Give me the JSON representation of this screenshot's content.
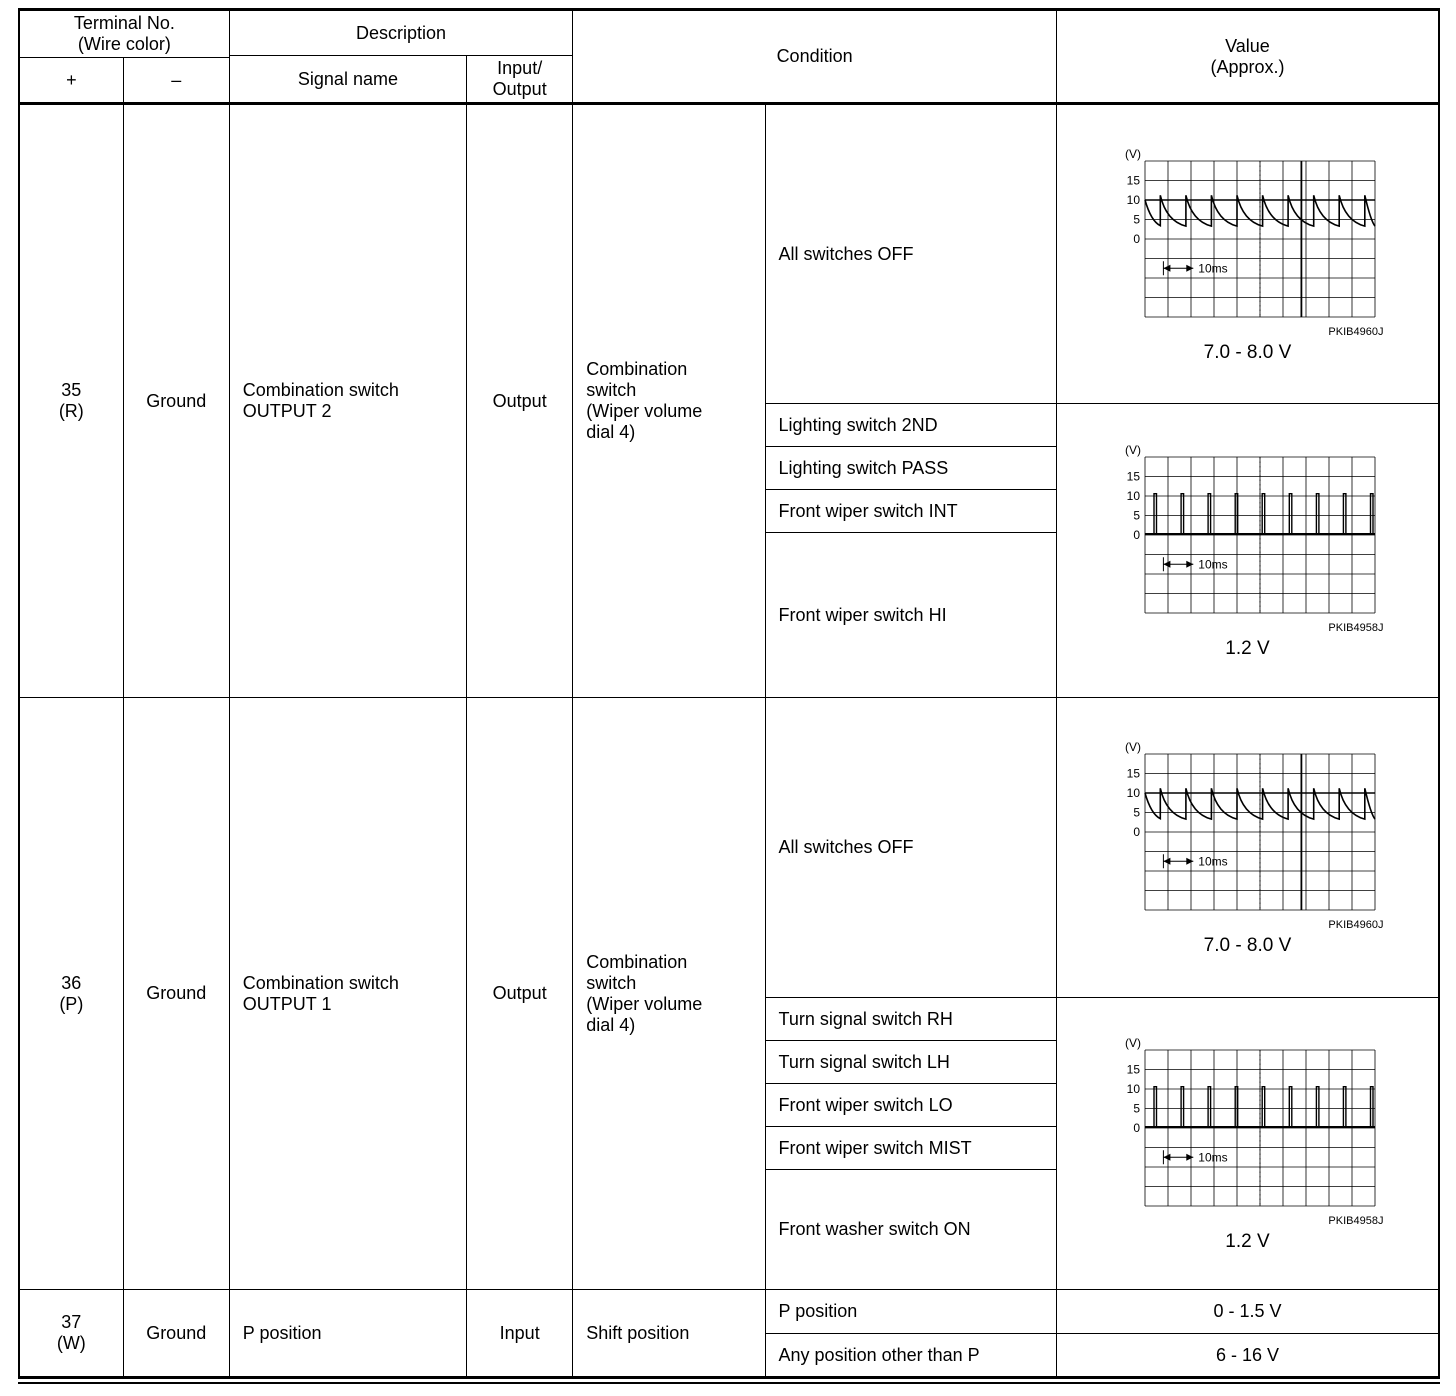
{
  "header": {
    "terminal": "Terminal No.\n(Wire color)",
    "plus": "+",
    "minus": "–",
    "description": "Description",
    "signal_name": "Signal name",
    "input_output": "Input/\nOutput",
    "condition": "Condition",
    "value": "Value\n(Approx.)"
  },
  "scope": {
    "v_label": "(V)",
    "ticks": [
      "15",
      "10",
      "5",
      "0"
    ],
    "time_label": "10ms"
  },
  "rows": [
    {
      "terminal": "35\n(R)",
      "ground": "Ground",
      "signal": "Combination switch\nOUTPUT 2",
      "io": "Output",
      "condition_main": "Combination\nswitch\n(Wiper volume\ndial 4)",
      "groups": [
        {
          "conditions": [
            "All switches OFF"
          ],
          "wave": "sawtooth",
          "code": "PKIB4960J",
          "value": "7.0 - 8.0 V"
        },
        {
          "conditions": [
            "Lighting switch 2ND",
            "Lighting switch PASS",
            "Front wiper switch INT",
            "Front wiper switch HI"
          ],
          "wave": "pulses",
          "code": "PKIB4958J",
          "value": "1.2 V"
        }
      ]
    },
    {
      "terminal": "36\n(P)",
      "ground": "Ground",
      "signal": "Combination switch\nOUTPUT 1",
      "io": "Output",
      "condition_main": "Combination\nswitch\n(Wiper volume\ndial 4)",
      "groups": [
        {
          "conditions": [
            "All switches OFF"
          ],
          "wave": "sawtooth",
          "code": "PKIB4960J",
          "value": "7.0 - 8.0 V"
        },
        {
          "conditions": [
            "Turn signal switch RH",
            "Turn signal switch LH",
            "Front wiper switch LO",
            "Front wiper switch MIST",
            "Front washer switch ON"
          ],
          "wave": "pulses",
          "code": "PKIB4958J",
          "value": "1.2 V"
        }
      ]
    },
    {
      "terminal": "37\n(W)",
      "ground": "Ground",
      "signal": "P position",
      "io": "Input",
      "condition_main": "Shift position",
      "groups": [
        {
          "conditions": [
            "P position"
          ],
          "value": "0 - 1.5 V"
        },
        {
          "conditions": [
            "Any position other than P"
          ],
          "value": "6 - 16 V"
        }
      ]
    }
  ]
}
